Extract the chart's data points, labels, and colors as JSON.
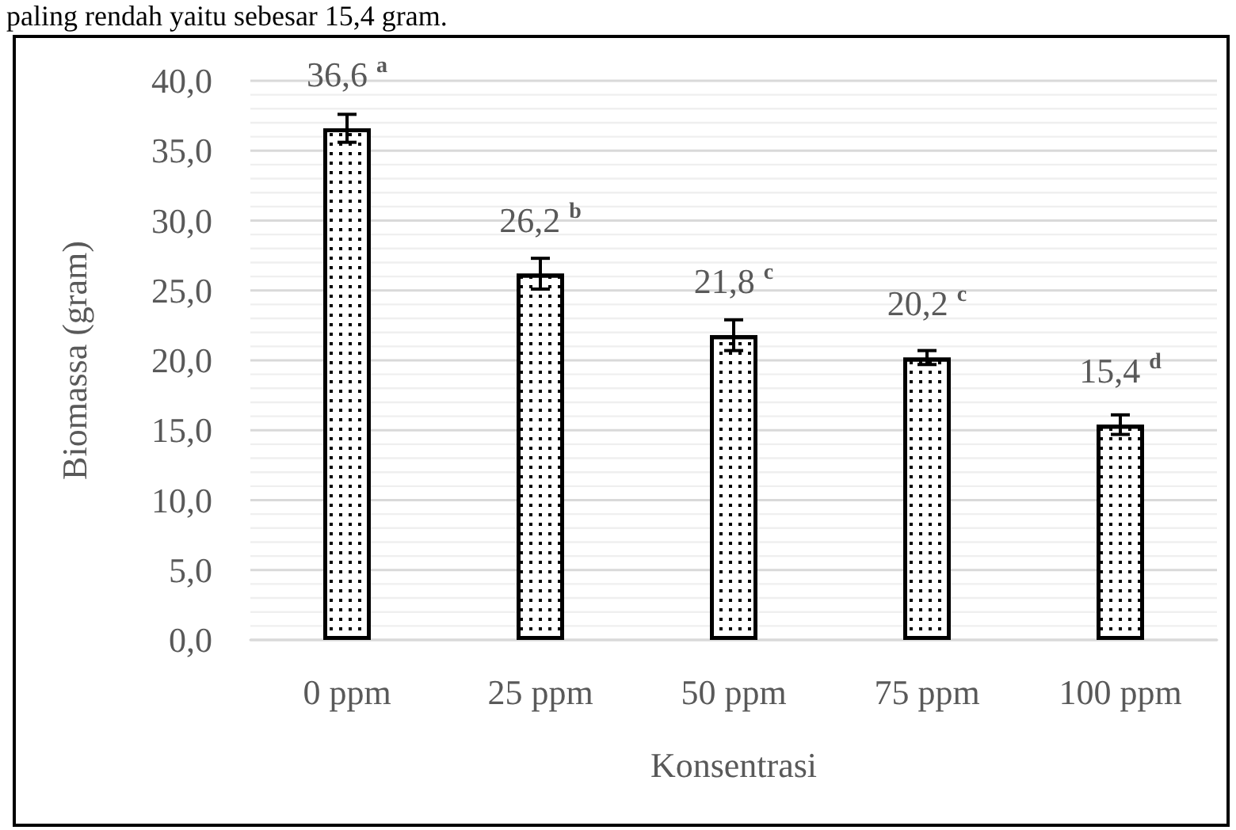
{
  "chart_data": {
    "type": "bar",
    "annotations": [
      "paling rendah yaitu sebesar 15,4 gram."
    ],
    "xlabel": "Konsentrasi",
    "ylabel": "Biomassa (gram)",
    "categories": [
      "0 ppm",
      "25 ppm",
      "50 ppm",
      "75 ppm",
      "100 ppm"
    ],
    "values": [
      36.6,
      26.2,
      21.8,
      20.2,
      15.4
    ],
    "errors": [
      1.0,
      1.1,
      1.1,
      0.5,
      0.7
    ],
    "value_labels": [
      "36,6 $^{a}$",
      "26,2 $^{b}$",
      "21,8 $^{c}$",
      "20,2 $^{c}$",
      "15,4 $^{d}$"
    ],
    "color": "#ffffff",
    "ylim": [
      0,
      40
    ],
    "yticks": [
      {
        "value": 0,
        "label": "0,0"
      },
      {
        "value": 1,
        "label": null
      },
      {
        "value": 2,
        "label": null
      },
      {
        "value": 3,
        "label": null
      },
      {
        "value": 4,
        "label": null
      },
      {
        "value": 5,
        "label": "5,0"
      },
      {
        "value": 6,
        "label": null
      },
      {
        "value": 7,
        "label": null
      },
      {
        "value": 8,
        "label": null
      },
      {
        "value": 9,
        "label": null
      },
      {
        "value": 10,
        "label": "10,0"
      },
      {
        "value": 11,
        "label": null
      },
      {
        "value": 12,
        "label": null
      },
      {
        "value": 13,
        "label": null
      },
      {
        "value": 14,
        "label": null
      },
      {
        "value": 15,
        "label": "15,0"
      },
      {
        "value": 16,
        "label": null
      },
      {
        "value": 17,
        "label": null
      },
      {
        "value": 18,
        "label": null
      },
      {
        "value": 19,
        "label": null
      },
      {
        "value": 20,
        "label": "20,0"
      },
      {
        "value": 21,
        "label": null
      },
      {
        "value": 22,
        "label": null
      },
      {
        "value": 23,
        "label": null
      },
      {
        "value": 24,
        "label": null
      },
      {
        "value": 25,
        "label": "25,0"
      },
      {
        "value": 26,
        "label": null
      },
      {
        "value": 27,
        "label": null
      },
      {
        "value": 28,
        "label": null
      },
      {
        "value": 29,
        "label": null
      },
      {
        "value": 30,
        "label": "30,0"
      },
      {
        "value": 31,
        "label": null
      },
      {
        "value": 32,
        "label": null
      },
      {
        "value": 33,
        "label": null
      },
      {
        "value": 34,
        "label": null
      },
      {
        "value": 35,
        "label": "35,0"
      },
      {
        "value": 36,
        "label": null
      },
      {
        "value": 37,
        "label": null
      },
      {
        "value": 38,
        "label": null
      },
      {
        "value": 39,
        "label": null
      },
      {
        "value": 40,
        "label": "40,0"
      }
    ],
    "grid": "y"
  }
}
